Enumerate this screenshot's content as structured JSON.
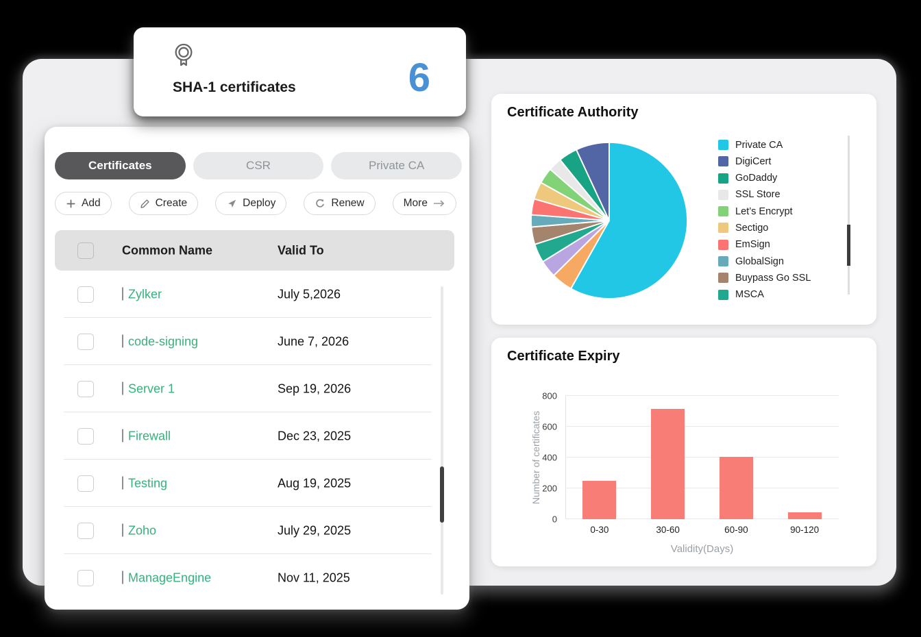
{
  "summary_card": {
    "icon": "medal-icon",
    "title": "SHA-1 certificates",
    "count": "6"
  },
  "tabs": [
    {
      "label": "Certificates",
      "active": true
    },
    {
      "label": "CSR",
      "active": false
    },
    {
      "label": "Private CA",
      "active": false
    }
  ],
  "toolbar": [
    {
      "label": "Add",
      "icon": "plus-icon"
    },
    {
      "label": "Create",
      "icon": "pencil-icon"
    },
    {
      "label": "Deploy",
      "icon": "send-icon"
    },
    {
      "label": "Renew",
      "icon": "refresh-icon"
    },
    {
      "label": "More",
      "icon": "arrow-right-icon",
      "icon_position": "after"
    }
  ],
  "table": {
    "columns": [
      "Common Name",
      "Valid To"
    ],
    "rows": [
      {
        "name": "Zylker",
        "valid_to": "July 5,2026"
      },
      {
        "name": "code-signing",
        "valid_to": "June 7, 2026"
      },
      {
        "name": "Server 1",
        "valid_to": "Sep 19, 2026"
      },
      {
        "name": "Firewall",
        "valid_to": "Dec 23, 2025"
      },
      {
        "name": "Testing",
        "valid_to": "Aug 19, 2025"
      },
      {
        "name": "Zoho",
        "valid_to": "July 29, 2025"
      },
      {
        "name": "ManageEngine",
        "valid_to": "Nov 11, 2025"
      }
    ]
  },
  "colors": {
    "cert_name_green": "#36b27c",
    "count_blue": "#4a90d5"
  },
  "chart_data": [
    {
      "type": "pie",
      "title": "Certificate Authority",
      "legend_position": "right",
      "legend": [
        {
          "label": "Private CA",
          "color": "#23c7e6"
        },
        {
          "label": "DigiCert",
          "color": "#5265a4"
        },
        {
          "label": "GoDaddy",
          "color": "#18a385"
        },
        {
          "label": "SSL Store",
          "color": "#e8e8e8"
        },
        {
          "label": "Let’s Encrypt",
          "color": "#82d377"
        },
        {
          "label": "Sectigo",
          "color": "#edc87d"
        },
        {
          "label": "EmSign",
          "color": "#fb7472"
        },
        {
          "label": "GlobalSign",
          "color": "#67abbb"
        },
        {
          "label": "Buypass Go SSL",
          "color": "#a5846e"
        },
        {
          "label": "MSCA",
          "color": "#21a88e"
        }
      ],
      "slices": [
        {
          "label": "Private CA",
          "share": 58.1,
          "color": "#23c7e6"
        },
        {
          "label": "",
          "share": 4.4,
          "color": "#f6a963"
        },
        {
          "label": "",
          "share": 3.6,
          "color": "#b9a6e0"
        },
        {
          "label": "MSCA",
          "share": 3.9,
          "color": "#21a88e"
        },
        {
          "label": "Buypass Go SSL",
          "share": 3.6,
          "color": "#a5846e"
        },
        {
          "label": "GlobalSign",
          "share": 2.5,
          "color": "#67abbb"
        },
        {
          "label": "EmSign",
          "share": 3.3,
          "color": "#fb7472"
        },
        {
          "label": "Sectigo",
          "share": 3.6,
          "color": "#edc87d"
        },
        {
          "label": "Let’s Encrypt",
          "share": 3.3,
          "color": "#82d377"
        },
        {
          "label": "SSL Store",
          "share": 2.8,
          "color": "#e8e8e8"
        },
        {
          "label": "GoDaddy",
          "share": 3.9,
          "color": "#18a385"
        },
        {
          "label": "DigiCert",
          "share": 6.9,
          "color": "#5265a4"
        }
      ]
    },
    {
      "type": "bar",
      "title": "Certificate Expiry",
      "categories": [
        "0-30",
        "30-60",
        "60-90",
        "90-120"
      ],
      "values": [
        250,
        715,
        405,
        45
      ],
      "xlabel": "Validity(Days)",
      "ylabel": "Number of certificates",
      "ylim": [
        0,
        800
      ],
      "yticks": [
        0,
        200,
        400,
        600,
        800
      ],
      "bar_color": "#f97d77",
      "grid": true
    }
  ]
}
